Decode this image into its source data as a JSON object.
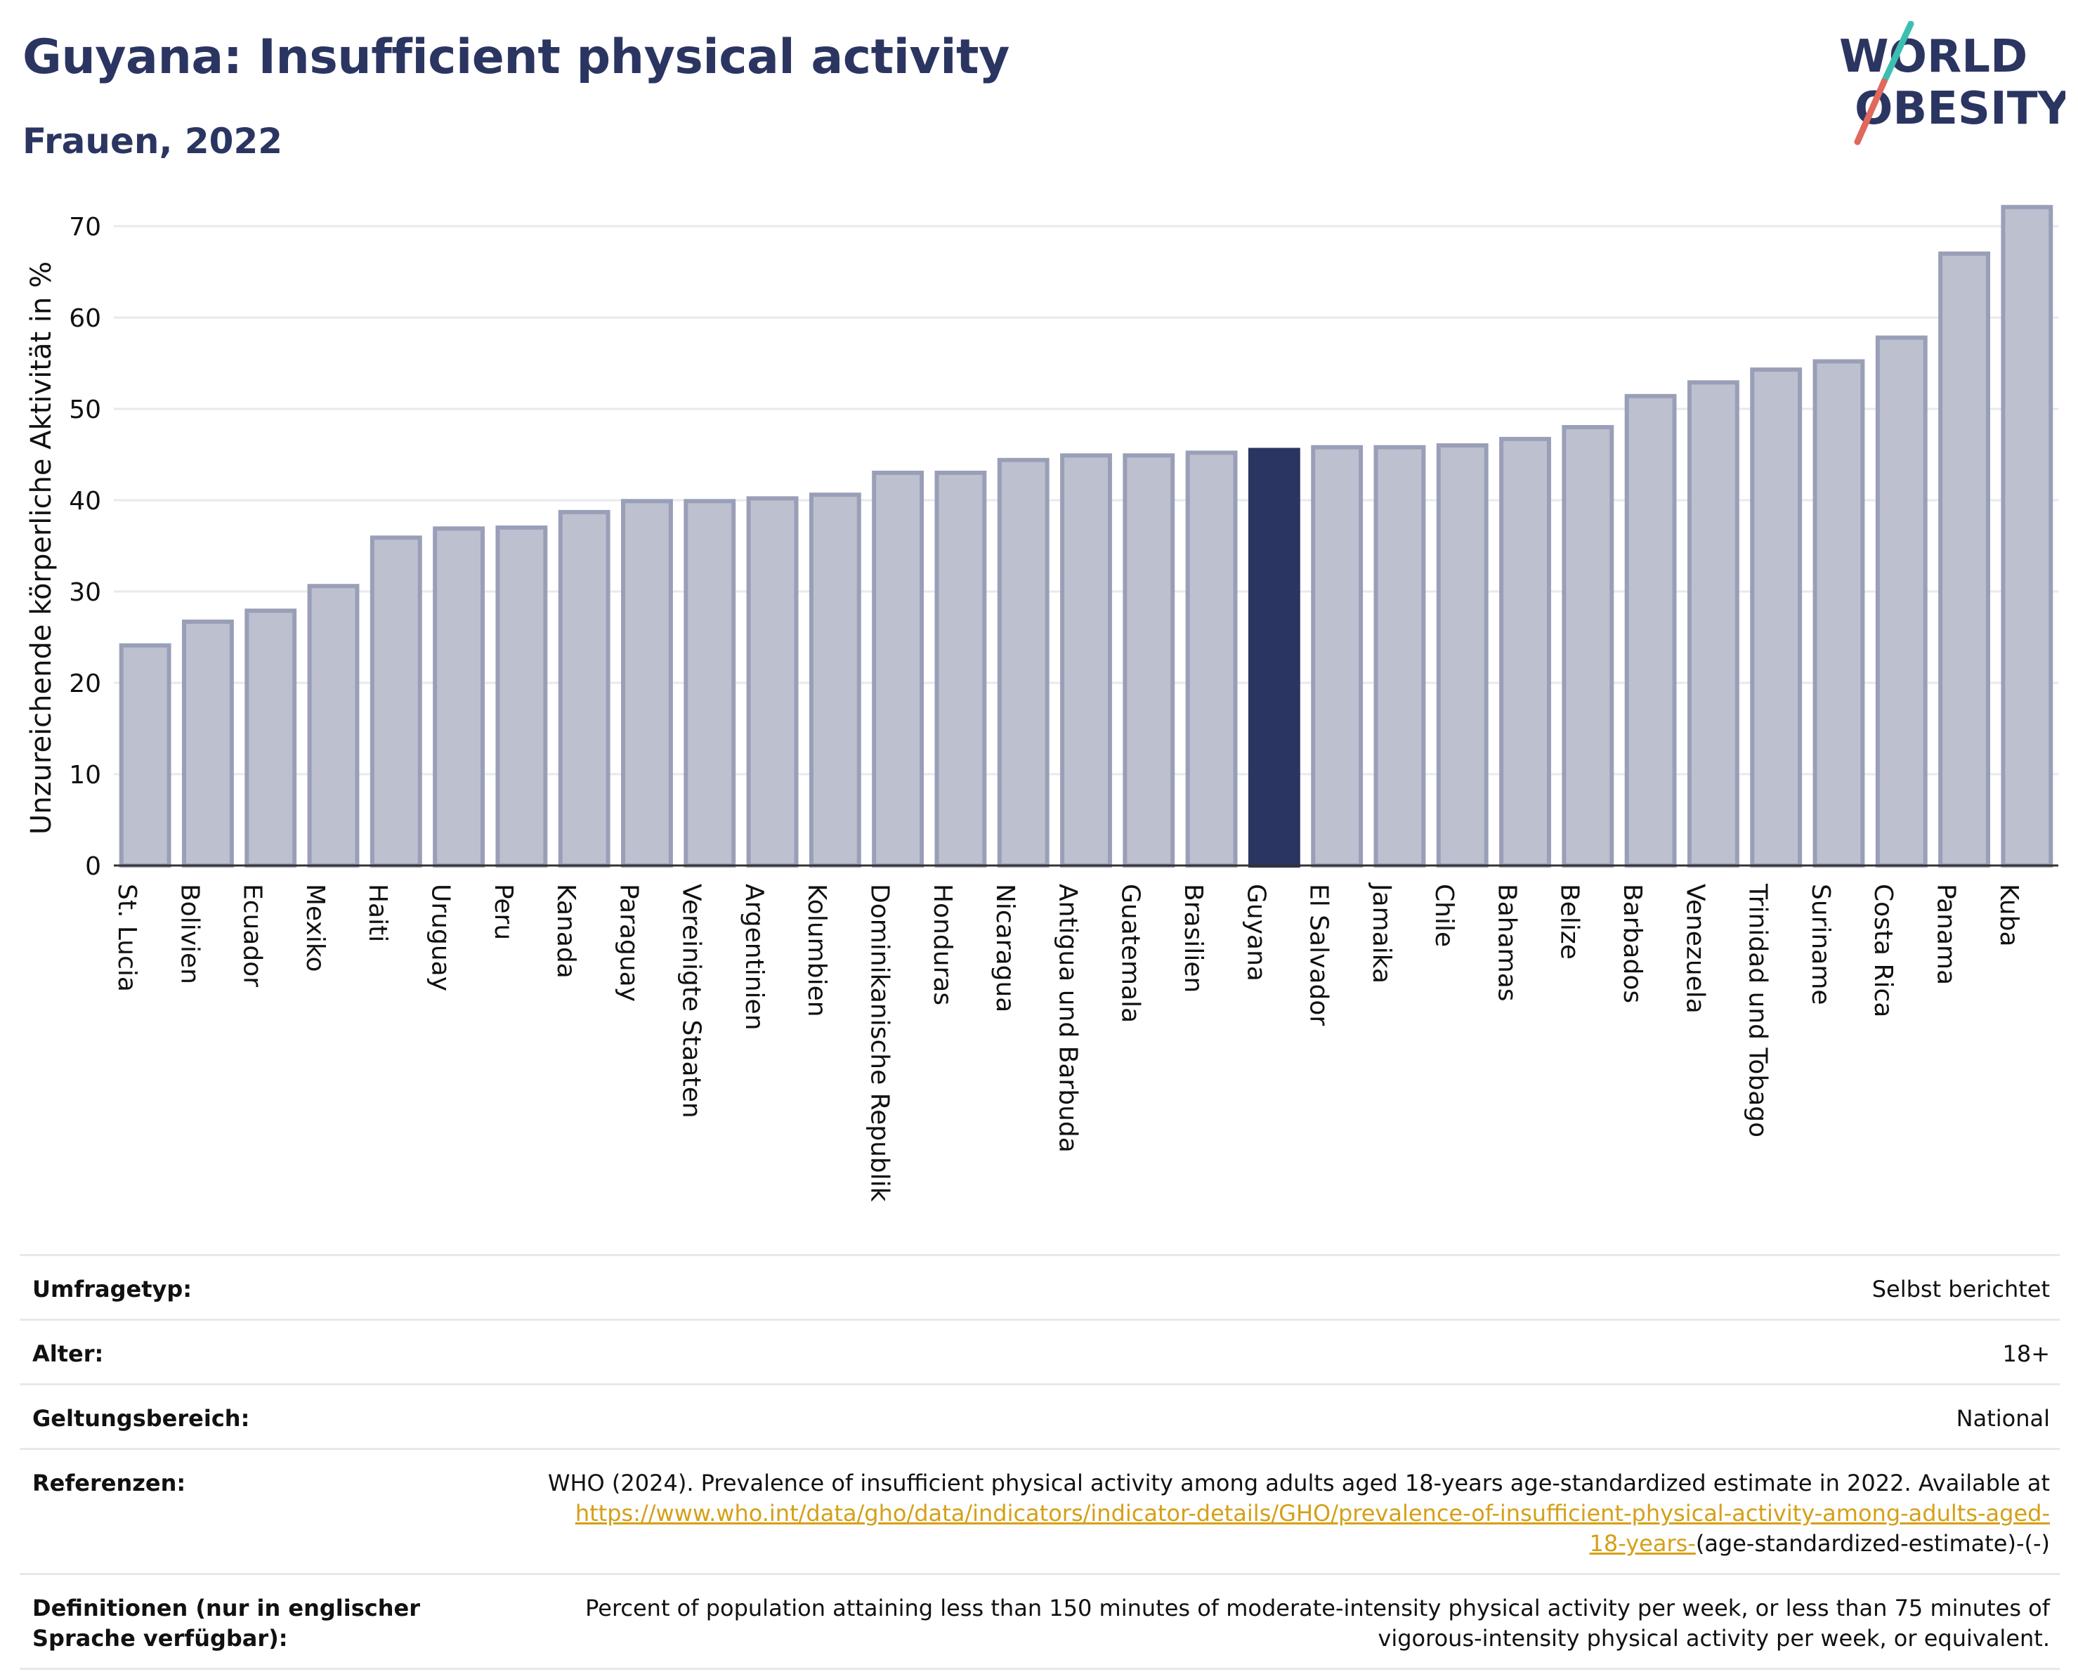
{
  "header": {
    "title": "Guyana: Insufficient physical activity",
    "subtitle": "Frauen, 2022"
  },
  "logo": {
    "line1": "WORLD",
    "line2": "OBESITY",
    "colors": {
      "text": "#2b3561",
      "accent_teal": "#3dbfb0",
      "accent_red": "#e0685c"
    }
  },
  "chart_data": {
    "type": "bar",
    "title": "Guyana: Insufficient physical activity",
    "subtitle": "Frauen, 2022",
    "xlabel": "",
    "ylabel": "Unzureichende körperliche Aktivität in %",
    "ylim": [
      0,
      74
    ],
    "yticks": [
      0,
      10,
      20,
      30,
      40,
      50,
      60,
      70
    ],
    "grid": true,
    "highlight": "Guyana",
    "colors": {
      "bar": "#bdc0cf",
      "bar_edge": "#9a9fb8",
      "highlight": "#2b3561",
      "grid": "#e8e9ee"
    },
    "categories": [
      "St. Lucia",
      "Bolivien",
      "Ecuador",
      "Mexiko",
      "Haiti",
      "Uruguay",
      "Peru",
      "Kanada",
      "Paraguay",
      "Vereinigte Staaten",
      "Argentinien",
      "Kolumbien",
      "Dominikanische Republik",
      "Honduras",
      "Nicaragua",
      "Antigua und Barbuda",
      "Guatemala",
      "Brasilien",
      "Guyana",
      "El Salvador",
      "Jamaika",
      "Chile",
      "Bahamas",
      "Belize",
      "Barbados",
      "Venezuela",
      "Trinidad und Tobago",
      "Suriname",
      "Costa Rica",
      "Panama",
      "Kuba"
    ],
    "values": [
      24.1,
      26.7,
      27.9,
      30.6,
      35.9,
      36.9,
      37.0,
      38.7,
      39.9,
      39.9,
      40.2,
      40.6,
      43.0,
      43.0,
      44.4,
      44.9,
      44.9,
      45.2,
      45.5,
      45.8,
      45.8,
      46.0,
      46.7,
      48.0,
      51.4,
      52.9,
      54.3,
      55.2,
      57.8,
      67.0,
      72.1
    ]
  },
  "footer": {
    "rows": [
      {
        "label": "Umfragetyp:",
        "value": "Selbst berichtet"
      },
      {
        "label": "Alter:",
        "value": "18+"
      },
      {
        "label": "Geltungsbereich:",
        "value": "National"
      }
    ],
    "references": {
      "label": "Referenzen:",
      "text": "WHO (2024). Prevalence of insufficient physical activity among adults aged 18-years age-standardized estimate in 2022. Available at",
      "link_line1": "https://www.who.int/data/gho/data/indicators/indicator-details/GHO/prevalence-of-insufficient-physical-activity-among-adults-aged-",
      "link_line2": "18-years-",
      "suffix": "(age-standardized-estimate)-(-)"
    },
    "definitions": {
      "label": "Definitionen (nur in englischer Sprache verfügbar):",
      "text": "Percent of population attaining less than 150 minutes of moderate-intensity physical activity per week, or less than 75 minutes of vigorous-intensity physical activity per week, or equivalent."
    }
  }
}
